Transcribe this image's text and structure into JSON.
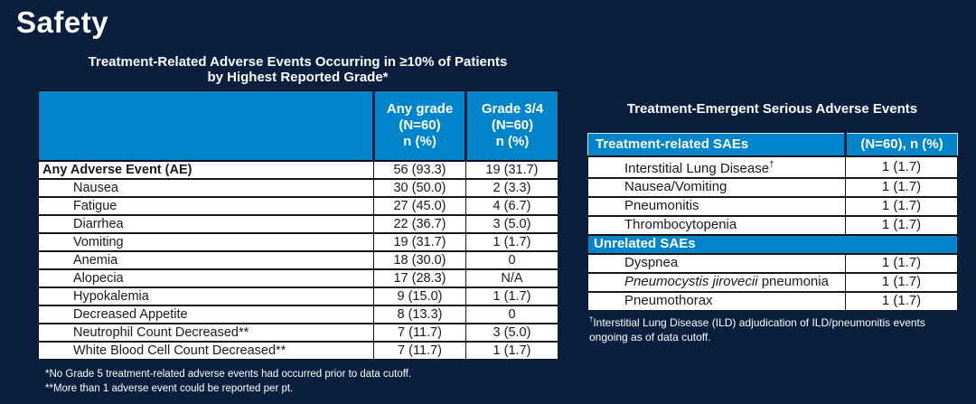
{
  "page": {
    "title": "Safety",
    "bg_color": "#0A1E3D",
    "accent_blue": "#0084CC"
  },
  "left_panel": {
    "title": "Treatment-Related Adverse Events Occurring in ≥10% of Patients\nby Highest Reported Grade*",
    "table": {
      "header_event": "",
      "header_any_grade": "Any grade\n(N=60)\nn (%)",
      "header_grade34": "Grade 3/4\n(N=60)\nn (%)",
      "rows": [
        {
          "label": "Any Adverse Event (AE)",
          "bold": true,
          "indent": false,
          "any_grade": "56 (93.3)",
          "grade34": "19 (31.7)"
        },
        {
          "label": "Nausea",
          "bold": false,
          "indent": true,
          "any_grade": "30 (50.0)",
          "grade34": "2 (3.3)"
        },
        {
          "label": "Fatigue",
          "bold": false,
          "indent": true,
          "any_grade": "27 (45.0)",
          "grade34": "4 (6.7)"
        },
        {
          "label": "Diarrhea",
          "bold": false,
          "indent": true,
          "any_grade": "22 (36.7)",
          "grade34": "3 (5.0)"
        },
        {
          "label": "Vomiting",
          "bold": false,
          "indent": true,
          "any_grade": "19 (31.7)",
          "grade34": "1 (1.7)"
        },
        {
          "label": "Anemia",
          "bold": false,
          "indent": true,
          "any_grade": "18 (30.0)",
          "grade34": "0"
        },
        {
          "label": "Alopecia",
          "bold": false,
          "indent": true,
          "any_grade": "17 (28.3)",
          "grade34": "N/A"
        },
        {
          "label": "Hypokalemia",
          "bold": false,
          "indent": true,
          "any_grade": "9 (15.0)",
          "grade34": "1 (1.7)"
        },
        {
          "label": "Decreased Appetite",
          "bold": false,
          "indent": true,
          "any_grade": "8 (13.3)",
          "grade34": "0"
        },
        {
          "label": "Neutrophil Count Decreased**",
          "bold": false,
          "indent": true,
          "any_grade": "7 (11.7)",
          "grade34": "3 (5.0)"
        },
        {
          "label": "White Blood Cell Count Decreased**",
          "bold": false,
          "indent": true,
          "any_grade": "7 (11.7)",
          "grade34": "1 (1.7)"
        }
      ]
    },
    "footnotes": [
      "*No Grade 5 treatment-related adverse events had occurred prior to data cutoff.",
      "**More than 1 adverse event could be reported per pt."
    ]
  },
  "right_panel": {
    "title": "Treatment-Emergent Serious Adverse Events",
    "table": {
      "header_label": "Treatment-related SAEs",
      "header_value": "(N=60), n (%)",
      "rows": [
        {
          "label": "Interstitial Lung Disease",
          "sup": "†",
          "value": "1 (1.7)"
        },
        {
          "label": "Nausea/Vomiting",
          "value": "1 (1.7)"
        },
        {
          "label": "Pneumonitis",
          "value": "1 (1.7)"
        },
        {
          "label": "Thrombocytopenia",
          "value": "1 (1.7)"
        },
        {
          "section": "Unrelated SAEs"
        },
        {
          "label": "Dyspnea",
          "value": "1 (1.7)"
        },
        {
          "label_italic": "Pneumocystis jirovecii",
          "label": " pneumonia",
          "value": "1 (1.7)"
        },
        {
          "label": "Pneumothorax",
          "value": "1 (1.7)"
        }
      ]
    },
    "footnote_sup": "†",
    "footnote": "Interstitial Lung Disease (ILD) adjudication of ILD/pneumonitis events ongoing as of data cutoff."
  }
}
